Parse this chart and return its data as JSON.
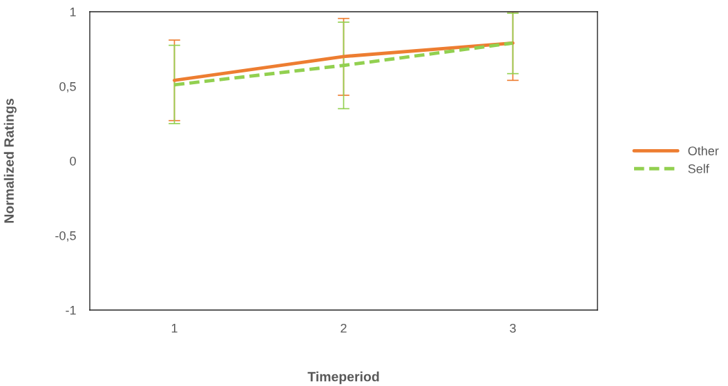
{
  "chart_data": {
    "type": "line",
    "xlabel": "Timeperiod",
    "ylabel": "Normalized Ratings",
    "categories": [
      "1",
      "2",
      "3"
    ],
    "series": [
      {
        "name": "Other",
        "color": "#ed7d31",
        "line_style": "solid",
        "values": [
          0.54,
          0.7,
          0.79
        ],
        "errors": [
          [
            0.27,
            0.81
          ],
          [
            0.44,
            0.955
          ],
          [
            0.54,
            1.0
          ]
        ]
      },
      {
        "name": "Self",
        "color": "#92d050",
        "line_style": "dashed",
        "values": [
          0.51,
          0.64,
          0.79
        ],
        "errors": [
          [
            0.25,
            0.775
          ],
          [
            0.35,
            0.93
          ],
          [
            0.585,
            0.99
          ]
        ]
      }
    ],
    "ylim": [
      -1,
      1
    ],
    "yticks": [
      -1,
      {
        "value": -0.5,
        "label": "-0,5"
      },
      0,
      {
        "value": 0.5,
        "label": "0,5"
      },
      1
    ],
    "grid": false,
    "legend": "right",
    "marker": "none"
  }
}
